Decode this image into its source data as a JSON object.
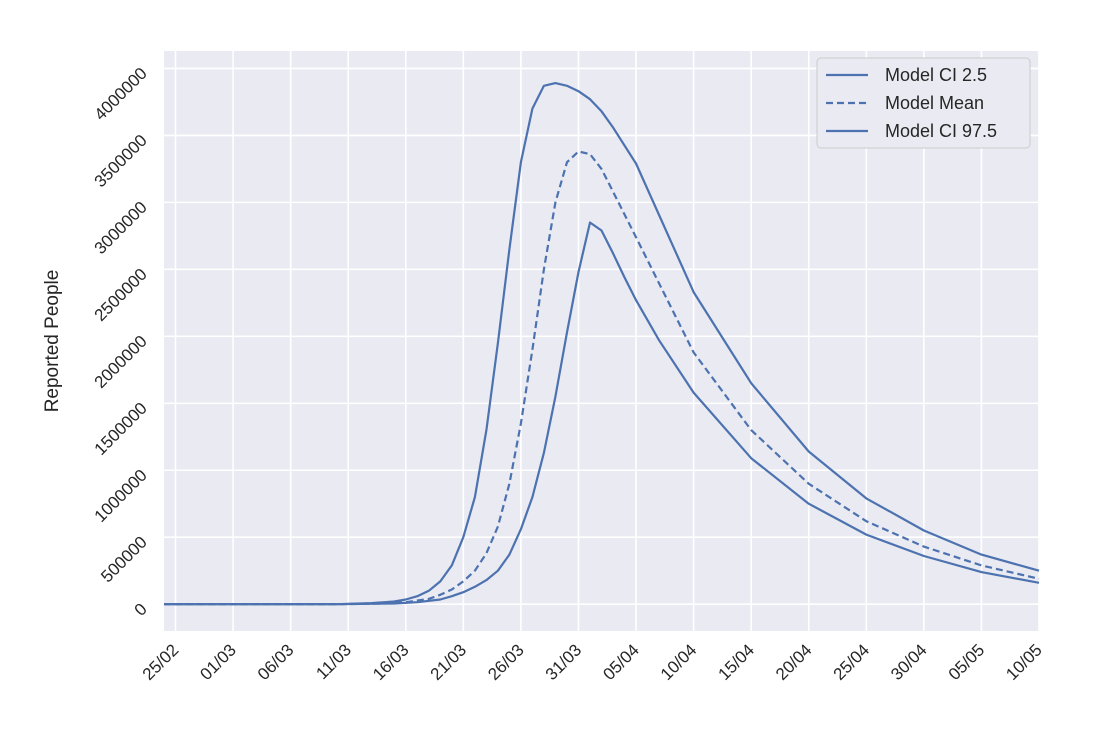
{
  "chart_data": {
    "type": "line",
    "title": "",
    "xlabel": "",
    "ylabel": "Reported People",
    "x_start": "2020-02-24",
    "x_end": "2020-05-10",
    "xlim": [
      "2020-02-24",
      "2020-05-10"
    ],
    "ylim": [
      -200000,
      4130000
    ],
    "grid": true,
    "legend_position": "top-right",
    "plot_background": "#EAEAF2",
    "grid_color": "#FFFFFF",
    "line_color": "#4C72B0",
    "yticks": [
      0,
      500000,
      1000000,
      1500000,
      2000000,
      2500000,
      3000000,
      3500000,
      4000000
    ],
    "ytick_labels": [
      "0",
      "500000",
      "1000000",
      "1500000",
      "2000000",
      "2500000",
      "3000000",
      "3500000",
      "4000000"
    ],
    "xtick_dates": [
      "2020-02-25",
      "2020-03-01",
      "2020-03-06",
      "2020-03-11",
      "2020-03-16",
      "2020-03-21",
      "2020-03-26",
      "2020-03-31",
      "2020-04-05",
      "2020-04-10",
      "2020-04-15",
      "2020-04-20",
      "2020-04-25",
      "2020-04-30",
      "2020-05-05",
      "2020-05-10"
    ],
    "xtick_labels": [
      "25/02",
      "01/03",
      "06/03",
      "11/03",
      "16/03",
      "21/03",
      "26/03",
      "31/03",
      "05/04",
      "10/04",
      "15/04",
      "20/04",
      "25/04",
      "30/04",
      "05/05",
      "10/05"
    ],
    "series": [
      {
        "name": "Model CI 2.5",
        "style": "solid",
        "points": [
          [
            "2020-02-24",
            0
          ],
          [
            "2020-03-10",
            0
          ],
          [
            "2020-03-15",
            5000
          ],
          [
            "2020-03-17",
            15000
          ],
          [
            "2020-03-19",
            35000
          ],
          [
            "2020-03-20",
            60000
          ],
          [
            "2020-03-21",
            90000
          ],
          [
            "2020-03-22",
            130000
          ],
          [
            "2020-03-23",
            180000
          ],
          [
            "2020-03-24",
            250000
          ],
          [
            "2020-03-25",
            370000
          ],
          [
            "2020-03-26",
            560000
          ],
          [
            "2020-03-27",
            800000
          ],
          [
            "2020-03-28",
            1130000
          ],
          [
            "2020-03-29",
            1550000
          ],
          [
            "2020-03-30",
            2030000
          ],
          [
            "2020-03-31",
            2480000
          ],
          [
            "2020-04-01",
            2850000
          ],
          [
            "2020-04-02",
            2790000
          ],
          [
            "2020-04-03",
            2620000
          ],
          [
            "2020-04-04",
            2440000
          ],
          [
            "2020-04-05",
            2270000
          ],
          [
            "2020-04-07",
            1970000
          ],
          [
            "2020-04-10",
            1580000
          ],
          [
            "2020-04-15",
            1090000
          ],
          [
            "2020-04-20",
            750000
          ],
          [
            "2020-04-25",
            520000
          ],
          [
            "2020-04-30",
            360000
          ],
          [
            "2020-05-05",
            240000
          ],
          [
            "2020-05-10",
            160000
          ]
        ]
      },
      {
        "name": "Model Mean",
        "style": "dashed",
        "points": [
          [
            "2020-02-24",
            0
          ],
          [
            "2020-03-10",
            0
          ],
          [
            "2020-03-14",
            5000
          ],
          [
            "2020-03-16",
            15000
          ],
          [
            "2020-03-18",
            40000
          ],
          [
            "2020-03-19",
            70000
          ],
          [
            "2020-03-20",
            110000
          ],
          [
            "2020-03-21",
            170000
          ],
          [
            "2020-03-22",
            250000
          ],
          [
            "2020-03-23",
            380000
          ],
          [
            "2020-03-24",
            580000
          ],
          [
            "2020-03-25",
            900000
          ],
          [
            "2020-03-26",
            1350000
          ],
          [
            "2020-03-27",
            1900000
          ],
          [
            "2020-03-28",
            2500000
          ],
          [
            "2020-03-29",
            3000000
          ],
          [
            "2020-03-30",
            3300000
          ],
          [
            "2020-03-31",
            3380000
          ],
          [
            "2020-04-01",
            3360000
          ],
          [
            "2020-04-02",
            3250000
          ],
          [
            "2020-04-03",
            3080000
          ],
          [
            "2020-04-05",
            2740000
          ],
          [
            "2020-04-10",
            1880000
          ],
          [
            "2020-04-15",
            1300000
          ],
          [
            "2020-04-20",
            900000
          ],
          [
            "2020-04-25",
            620000
          ],
          [
            "2020-04-30",
            430000
          ],
          [
            "2020-05-05",
            290000
          ],
          [
            "2020-05-10",
            190000
          ]
        ]
      },
      {
        "name": "Model CI 97.5",
        "style": "solid",
        "points": [
          [
            "2020-02-24",
            0
          ],
          [
            "2020-03-10",
            0
          ],
          [
            "2020-03-13",
            8000
          ],
          [
            "2020-03-15",
            20000
          ],
          [
            "2020-03-16",
            35000
          ],
          [
            "2020-03-17",
            60000
          ],
          [
            "2020-03-18",
            100000
          ],
          [
            "2020-03-19",
            170000
          ],
          [
            "2020-03-20",
            290000
          ],
          [
            "2020-03-21",
            500000
          ],
          [
            "2020-03-22",
            800000
          ],
          [
            "2020-03-23",
            1300000
          ],
          [
            "2020-03-24",
            1950000
          ],
          [
            "2020-03-25",
            2650000
          ],
          [
            "2020-03-26",
            3300000
          ],
          [
            "2020-03-27",
            3700000
          ],
          [
            "2020-03-28",
            3870000
          ],
          [
            "2020-03-29",
            3890000
          ],
          [
            "2020-03-30",
            3870000
          ],
          [
            "2020-03-31",
            3830000
          ],
          [
            "2020-04-01",
            3770000
          ],
          [
            "2020-04-02",
            3680000
          ],
          [
            "2020-04-03",
            3560000
          ],
          [
            "2020-04-05",
            3290000
          ],
          [
            "2020-04-10",
            2330000
          ],
          [
            "2020-04-15",
            1650000
          ],
          [
            "2020-04-20",
            1140000
          ],
          [
            "2020-04-25",
            790000
          ],
          [
            "2020-04-30",
            550000
          ],
          [
            "2020-05-05",
            370000
          ],
          [
            "2020-05-10",
            250000
          ]
        ]
      }
    ]
  }
}
